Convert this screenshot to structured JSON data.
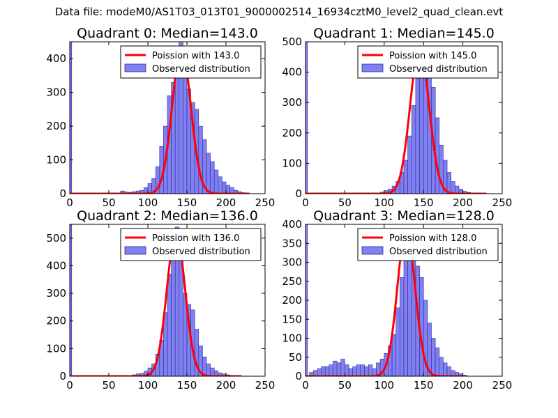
{
  "suptitle": "Data file: modeM0/AS1T03_013T01_9000002514_16934cztM0_level2_quad_clean.evt",
  "colors": {
    "hist_fill": "#8080f0",
    "hist_edge": "#2a2a9a",
    "poisson": "#ff0000",
    "axis": "#000000",
    "legend_edge": "#000000"
  },
  "chart_data": [
    {
      "type": "bar",
      "title": "Quadrant 0: Median=143.0",
      "xlim": [
        0,
        250
      ],
      "ylim": [
        0,
        450
      ],
      "xticks": [
        0,
        50,
        100,
        150,
        200,
        250
      ],
      "yticks": [
        0,
        100,
        200,
        300,
        400
      ],
      "bin_width": 5,
      "zero_bin_value": 460,
      "bins": [
        [
          65,
          8
        ],
        [
          70,
          5
        ],
        [
          75,
          4
        ],
        [
          80,
          6
        ],
        [
          85,
          8
        ],
        [
          90,
          10
        ],
        [
          95,
          18
        ],
        [
          100,
          30
        ],
        [
          105,
          45
        ],
        [
          110,
          80
        ],
        [
          115,
          140
        ],
        [
          120,
          200
        ],
        [
          125,
          290
        ],
        [
          130,
          330
        ],
        [
          135,
          390
        ],
        [
          140,
          450
        ],
        [
          145,
          360
        ],
        [
          150,
          310
        ],
        [
          155,
          270
        ],
        [
          160,
          250
        ],
        [
          165,
          200
        ],
        [
          170,
          160
        ],
        [
          175,
          120
        ],
        [
          180,
          95
        ],
        [
          185,
          70
        ],
        [
          190,
          50
        ],
        [
          195,
          35
        ],
        [
          200,
          25
        ],
        [
          205,
          18
        ],
        [
          210,
          10
        ],
        [
          215,
          6
        ],
        [
          220,
          3
        ],
        [
          225,
          2
        ]
      ],
      "poisson_mean": 143.0,
      "poisson_peak": 430,
      "poisson_xrange": [
        0,
        230
      ],
      "legend": [
        "Poission with 143.0",
        "Observed distribution"
      ]
    },
    {
      "type": "bar",
      "title": "Quadrant 1: Median=145.0",
      "xlim": [
        0,
        250
      ],
      "ylim": [
        0,
        500
      ],
      "xticks": [
        0,
        50,
        100,
        150,
        200,
        250
      ],
      "yticks": [
        0,
        100,
        200,
        300,
        400,
        500
      ],
      "bin_width": 5,
      "zero_bin_value": 500,
      "bins": [
        [
          95,
          5
        ],
        [
          100,
          10
        ],
        [
          105,
          15
        ],
        [
          110,
          25
        ],
        [
          115,
          40
        ],
        [
          120,
          70
        ],
        [
          125,
          110
        ],
        [
          130,
          190
        ],
        [
          135,
          290
        ],
        [
          140,
          380
        ],
        [
          145,
          450
        ],
        [
          150,
          480
        ],
        [
          155,
          430
        ],
        [
          160,
          350
        ],
        [
          165,
          250
        ],
        [
          170,
          160
        ],
        [
          175,
          110
        ],
        [
          180,
          70
        ],
        [
          185,
          40
        ],
        [
          190,
          25
        ],
        [
          195,
          15
        ],
        [
          200,
          8
        ],
        [
          205,
          4
        ],
        [
          210,
          2
        ]
      ],
      "poisson_mean": 145.0,
      "poisson_peak": 480,
      "poisson_xrange": [
        0,
        230
      ],
      "legend": [
        "Poission with 145.0",
        "Observed distribution"
      ]
    },
    {
      "type": "bar",
      "title": "Quadrant 2: Median=136.0",
      "xlim": [
        0,
        250
      ],
      "ylim": [
        0,
        550
      ],
      "xticks": [
        0,
        50,
        100,
        150,
        200,
        250
      ],
      "yticks": [
        0,
        100,
        200,
        300,
        400,
        500
      ],
      "bin_width": 5,
      "zero_bin_value": 550,
      "bins": [
        [
          80,
          5
        ],
        [
          85,
          8
        ],
        [
          90,
          10
        ],
        [
          95,
          18
        ],
        [
          100,
          30
        ],
        [
          105,
          45
        ],
        [
          110,
          80
        ],
        [
          115,
          130
        ],
        [
          120,
          230
        ],
        [
          125,
          370
        ],
        [
          130,
          460
        ],
        [
          135,
          540
        ],
        [
          140,
          430
        ],
        [
          145,
          300
        ],
        [
          150,
          260
        ],
        [
          155,
          240
        ],
        [
          160,
          170
        ],
        [
          165,
          110
        ],
        [
          170,
          70
        ],
        [
          175,
          45
        ],
        [
          180,
          30
        ],
        [
          185,
          20
        ],
        [
          190,
          12
        ],
        [
          195,
          8
        ],
        [
          200,
          5
        ],
        [
          205,
          3
        ],
        [
          210,
          2
        ],
        [
          215,
          1
        ]
      ],
      "poisson_mean": 136.0,
      "poisson_peak": 520,
      "poisson_xrange": [
        0,
        220
      ],
      "legend": [
        "Poission with 136.0",
        "Observed distribution"
      ]
    },
    {
      "type": "bar",
      "title": "Quadrant 3: Median=128.0",
      "xlim": [
        0,
        250
      ],
      "ylim": [
        0,
        400
      ],
      "xticks": [
        0,
        50,
        100,
        150,
        200,
        250
      ],
      "yticks": [
        0,
        50,
        100,
        150,
        200,
        250,
        300,
        350,
        400
      ],
      "bin_width": 5,
      "zero_bin_value": 400,
      "bins": [
        [
          5,
          10
        ],
        [
          10,
          15
        ],
        [
          15,
          20
        ],
        [
          20,
          25
        ],
        [
          25,
          25
        ],
        [
          30,
          30
        ],
        [
          35,
          40
        ],
        [
          40,
          35
        ],
        [
          45,
          45
        ],
        [
          50,
          30
        ],
        [
          55,
          20
        ],
        [
          60,
          25
        ],
        [
          65,
          30
        ],
        [
          70,
          30
        ],
        [
          75,
          25
        ],
        [
          80,
          30
        ],
        [
          85,
          20
        ],
        [
          90,
          35
        ],
        [
          95,
          45
        ],
        [
          100,
          60
        ],
        [
          105,
          80
        ],
        [
          110,
          110
        ],
        [
          115,
          180
        ],
        [
          120,
          260
        ],
        [
          125,
          340
        ],
        [
          130,
          380
        ],
        [
          135,
          350
        ],
        [
          140,
          290
        ],
        [
          145,
          260
        ],
        [
          150,
          200
        ],
        [
          155,
          140
        ],
        [
          160,
          100
        ],
        [
          165,
          75
        ],
        [
          170,
          50
        ],
        [
          175,
          35
        ],
        [
          180,
          25
        ],
        [
          185,
          15
        ],
        [
          190,
          10
        ],
        [
          195,
          6
        ],
        [
          200,
          3
        ]
      ],
      "poisson_mean": 128.0,
      "poisson_peak": 385,
      "poisson_xrange": [
        0,
        200
      ],
      "legend": [
        "Poission with 128.0",
        "Observed distribution"
      ]
    }
  ]
}
